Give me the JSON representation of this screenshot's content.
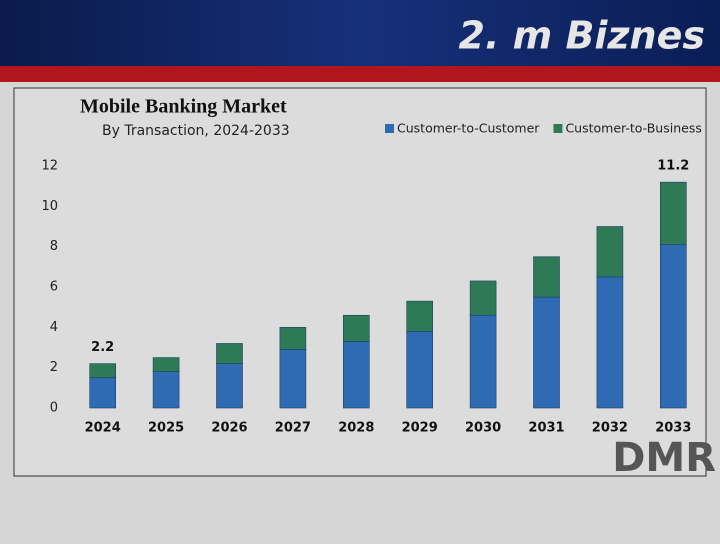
{
  "header": {
    "title": "2. m Biznes"
  },
  "logo": "DMR",
  "chart_data": {
    "type": "stacked-bar",
    "title": "Mobile Banking Market",
    "subtitle": "By Transaction, 2024-2033",
    "categories": [
      "2024",
      "2025",
      "2026",
      "2027",
      "2028",
      "2029",
      "2030",
      "2031",
      "2032",
      "2033"
    ],
    "series": [
      {
        "name": "Customer-to-Customer",
        "color": "#2f6bb3",
        "values": [
          1.5,
          1.8,
          2.2,
          2.9,
          3.3,
          3.8,
          4.6,
          5.5,
          6.5,
          8.1
        ]
      },
      {
        "name": "Customer-to-Business",
        "color": "#2f7a56",
        "values": [
          0.7,
          0.7,
          1.0,
          1.1,
          1.3,
          1.5,
          1.7,
          2.0,
          2.5,
          3.1
        ]
      }
    ],
    "totals": [
      2.2,
      null,
      null,
      null,
      null,
      null,
      null,
      null,
      null,
      11.2
    ],
    "ylim": [
      0,
      12
    ],
    "yticks": [
      0,
      2,
      4,
      6,
      8,
      10,
      12
    ],
    "grid": false,
    "legend": "top-right"
  }
}
